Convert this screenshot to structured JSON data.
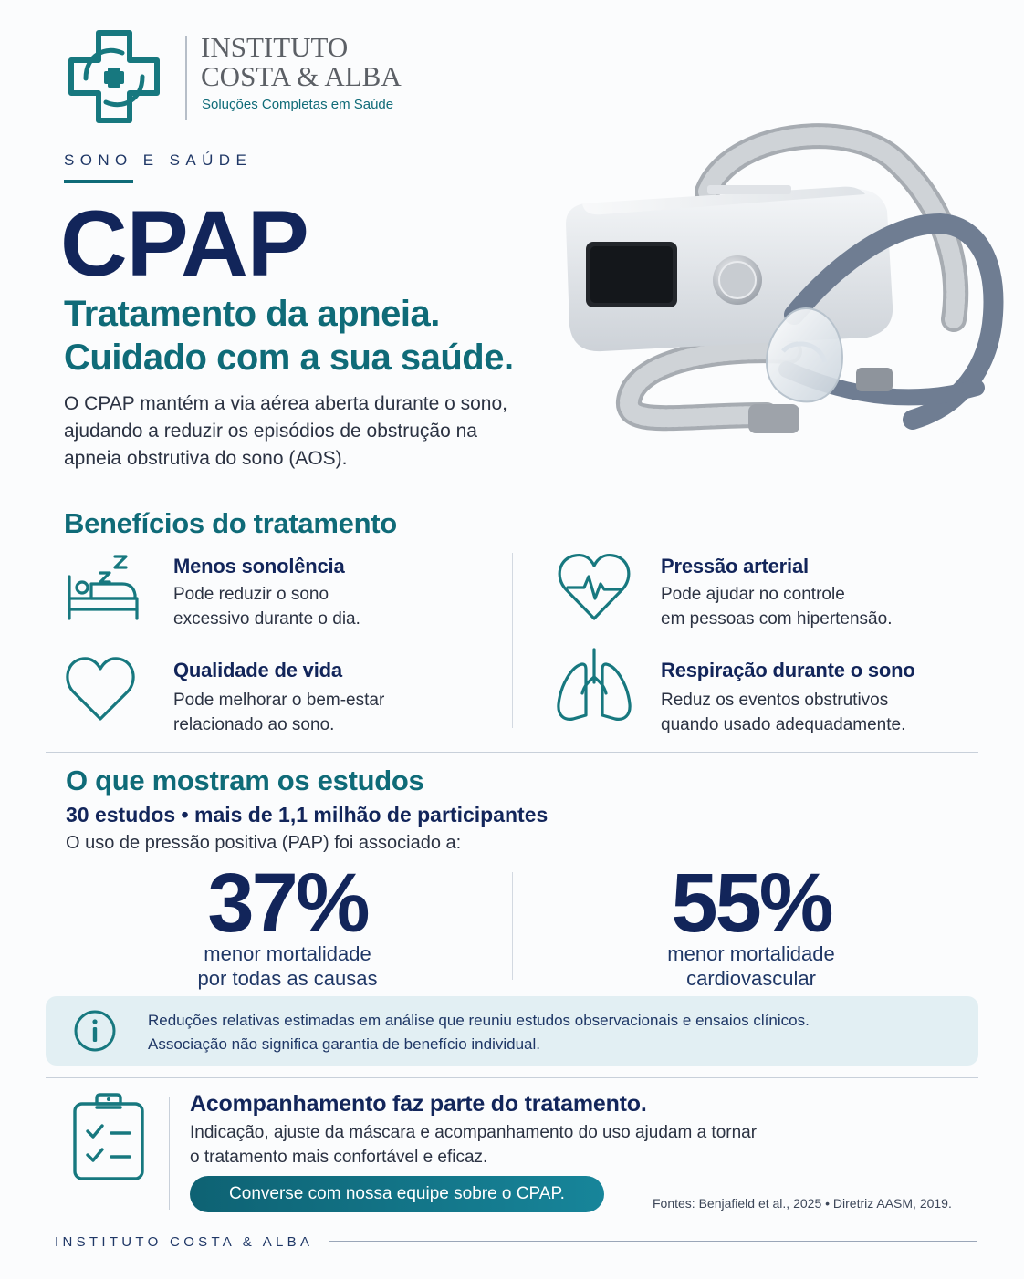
{
  "brand": {
    "name_line1": "INSTITUTO",
    "name_line2": "COSTA & ALBA",
    "tagline": "Soluções Completas em Saúde"
  },
  "hero": {
    "kicker": "SONO E SAÚDE",
    "title": "CPAP",
    "subtitle_line1": "Tratamento da apneia.",
    "subtitle_line2": "Cuidado com a sua saúde.",
    "body_line1": "O CPAP mantém a via aérea aberta durante o sono,",
    "body_line2": "ajudando a reduzir os episódios de obstrução na",
    "body_line3": "apneia obstrutiva do sono (AOS)."
  },
  "benefits": {
    "title": "Benefícios do tratamento",
    "items": [
      {
        "icon": "sleeping-bed-icon",
        "title": "Menos sonolência",
        "line1": "Pode reduzir o sono",
        "line2": "excessivo durante o dia."
      },
      {
        "icon": "heart-pulse-icon",
        "title": "Pressão arterial",
        "line1": "Pode ajudar no controle",
        "line2": "em pessoas com hipertensão."
      },
      {
        "icon": "heart-outline-icon",
        "title": "Qualidade de vida",
        "line1": "Pode melhorar o bem-estar",
        "line2": "relacionado ao sono."
      },
      {
        "icon": "lungs-icon",
        "title": "Respiração durante o sono",
        "line1": "Reduz os eventos obstrutivos",
        "line2": "quando usado adequadamente."
      }
    ]
  },
  "studies": {
    "title": "O que mostram os estudos",
    "subtitle": "30 estudos • mais de 1,1 milhão de participantes",
    "intro": "O uso de pressão positiva (PAP) foi associado a:",
    "stats": [
      {
        "value": "37%",
        "line1": "menor mortalidade",
        "line2": "por todas as causas"
      },
      {
        "value": "55%",
        "line1": "menor mortalidade",
        "line2": "cardiovascular"
      }
    ],
    "note_line1": "Reduções relativas estimadas em análise que reuniu estudos observacionais e ensaios clínicos.",
    "note_line2": "Associação não significa garantia de benefício individual."
  },
  "followup": {
    "title": "Acompanhamento faz parte do tratamento.",
    "line1": "Indicação, ajuste da máscara e acompanhamento do uso ajudam a tornar",
    "line2": "o tratamento mais confortável e eficaz.",
    "cta": "Converse com nossa equipe sobre o CPAP.",
    "sources": "Fontes: Benjafield et al., 2025 • Diretriz AASM, 2019."
  },
  "footer": {
    "brand": "INSTITUTO COSTA & ALBA"
  },
  "colors": {
    "navy": "#12255a",
    "teal": "#0f6b78",
    "info_bg": "#e2eff3",
    "background": "#fbfcfd"
  }
}
